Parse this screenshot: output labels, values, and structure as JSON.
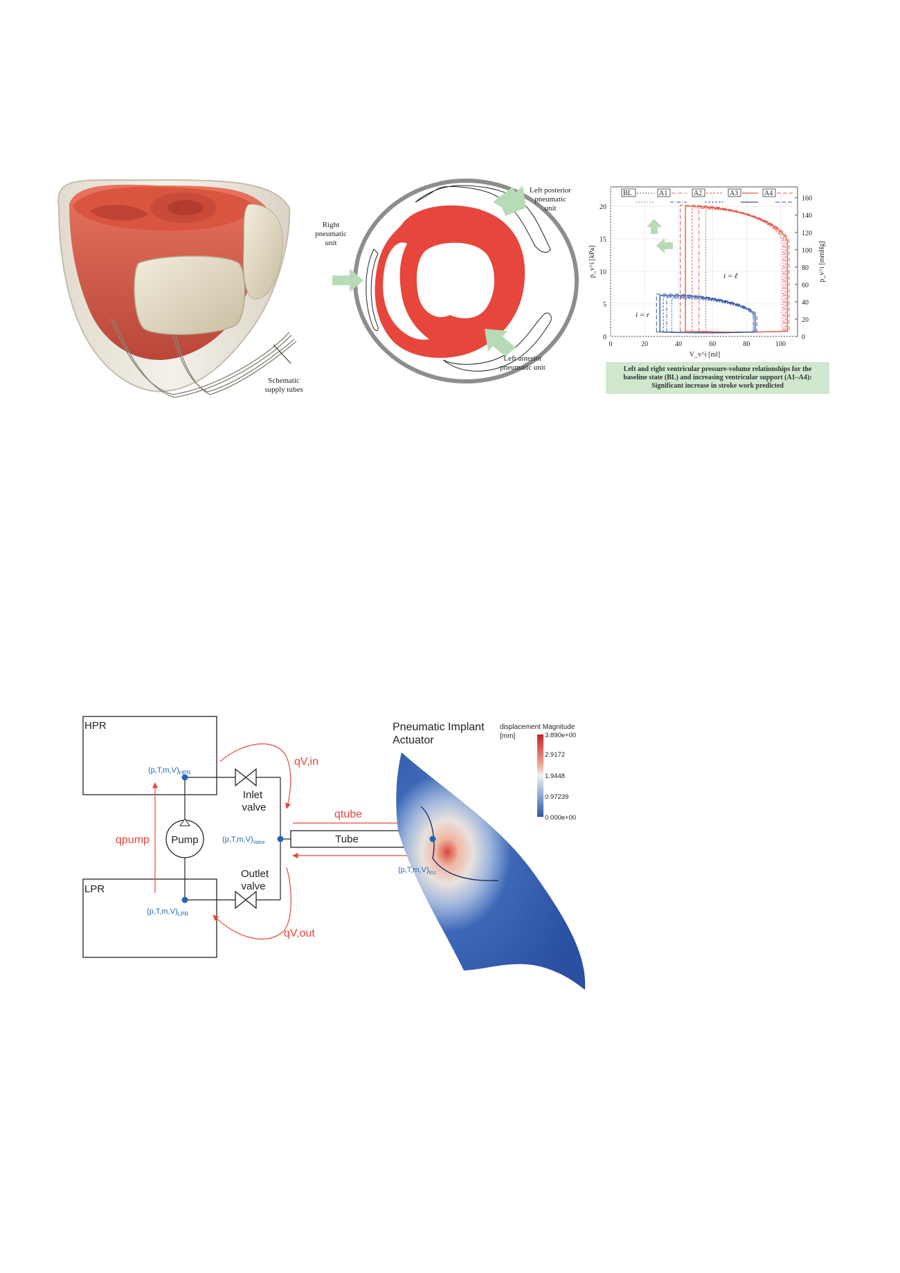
{
  "heart_figure": {
    "supply_tubes_label": [
      "Schematic",
      "supply tubes"
    ]
  },
  "cross_section": {
    "right_unit_label": [
      "Right",
      "pneumatic",
      "unit"
    ],
    "left_posterior_label": [
      "Left posterior",
      "pneumatic",
      "unit"
    ],
    "left_anterior_label": [
      "Left anterior",
      "pneumatic unit"
    ]
  },
  "pv_chart": {
    "legend": [
      "BL",
      "A1",
      "A2",
      "A3",
      "A4"
    ],
    "y_left_ticks": [
      "0",
      "5",
      "10",
      "15",
      "20"
    ],
    "y_right_ticks": [
      "0",
      "20",
      "40",
      "60",
      "80",
      "100",
      "120",
      "140",
      "160"
    ],
    "x_ticks": [
      "0",
      "20",
      "40",
      "60",
      "80",
      "100"
    ],
    "y_left_label": "p_v^i [kPa]",
    "y_right_label": "p_v^i [mmHg]",
    "x_label": "V_v^i [ml]",
    "annotation_left": "i = ℓ",
    "annotation_right": "i = r",
    "caption": [
      "Left and right ventricular pressure-volume relationships for the",
      "baseline state (BL) and increasing ventricular support (A1–A4):",
      "Significant increase in stroke work predicted"
    ],
    "colors": {
      "left": "#e0584b",
      "right": "#2f55a4",
      "arrow": "#b7dbb7",
      "caption_bg": "#cfe8cf"
    }
  },
  "chart_data": {
    "type": "line",
    "title": "",
    "xlabel": "V_v^i [ml]",
    "ylabel": "p_v^i [kPa]",
    "y2label": "p_v^i [mmHg]",
    "xlim": [
      0,
      110
    ],
    "ylim": [
      0,
      23
    ],
    "series": [
      {
        "name": "BL",
        "ventricle": "left",
        "x": [
          56,
          56,
          101,
          101
        ],
        "y": [
          0.8,
          19.5,
          14.5,
          0.8
        ]
      },
      {
        "name": "A1",
        "ventricle": "left",
        "x": [
          52,
          52,
          102,
          102
        ],
        "y": [
          0.8,
          19.7,
          14.5,
          0.8
        ]
      },
      {
        "name": "A2",
        "ventricle": "left",
        "x": [
          48,
          48,
          103,
          103
        ],
        "y": [
          0.8,
          19.8,
          14.5,
          0.8
        ]
      },
      {
        "name": "A3",
        "ventricle": "left",
        "x": [
          44,
          44,
          104,
          104
        ],
        "y": [
          0.8,
          20.0,
          14.5,
          0.8
        ]
      },
      {
        "name": "A4",
        "ventricle": "left",
        "x": [
          41,
          41,
          105,
          105
        ],
        "y": [
          0.8,
          20.2,
          14.5,
          0.8
        ]
      },
      {
        "name": "BL",
        "ventricle": "right",
        "x": [
          36,
          36,
          84,
          84
        ],
        "y": [
          0.7,
          5.8,
          3.2,
          0.7
        ]
      },
      {
        "name": "A1",
        "ventricle": "right",
        "x": [
          33,
          33,
          84,
          84
        ],
        "y": [
          0.7,
          6.0,
          3.2,
          0.7
        ]
      },
      {
        "name": "A2",
        "ventricle": "right",
        "x": [
          31,
          31,
          85,
          85
        ],
        "y": [
          0.7,
          6.1,
          3.2,
          0.7
        ]
      },
      {
        "name": "A3",
        "ventricle": "right",
        "x": [
          29,
          29,
          85,
          85
        ],
        "y": [
          0.7,
          6.3,
          3.2,
          0.7
        ]
      },
      {
        "name": "A4",
        "ventricle": "right",
        "x": [
          27,
          27,
          86,
          86
        ],
        "y": [
          0.7,
          6.5,
          3.2,
          0.7
        ]
      }
    ]
  },
  "pneumatic_diagram": {
    "hpr_label": "HPR",
    "lpr_label": "LPR",
    "pump_label": "Pump",
    "inlet_valve_label": [
      "Inlet",
      "valve"
    ],
    "outlet_valve_label": [
      "Outlet",
      "valve"
    ],
    "tube_label": "Tube",
    "hpr_state": "(p,T,m,V)",
    "hpr_sub": "HPR",
    "lpr_state": "(p,T,m,V)",
    "lpr_sub": "LPR",
    "valve_state": "(p,T,m,V)",
    "valve_sub": "Valve",
    "eu_state": "(p,T,m,V)",
    "eu_sub": "EU",
    "q_in": "qV,in",
    "q_out": "qV,out",
    "q_tube": "qtube",
    "q_pump": "qpump",
    "actuator_title": [
      "Pneumatic Implant",
      "Actuator"
    ],
    "colorbar_title": "displacement Magnitude",
    "colorbar_unit": "[mm]",
    "colorbar_ticks": [
      "3.890e+00",
      "2.9172",
      "1.9448",
      "0.97239",
      "0.000e+00"
    ]
  }
}
